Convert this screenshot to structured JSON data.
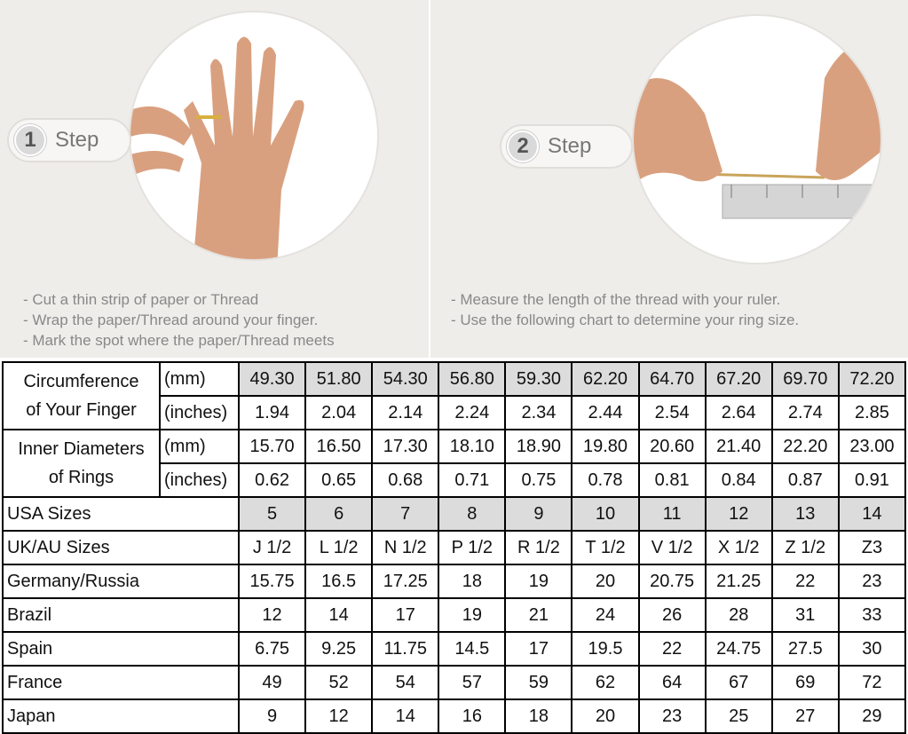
{
  "step1": {
    "number": "1",
    "label": "Step",
    "instructions": [
      "Cut a thin strip of paper or Thread",
      "Wrap the paper/Thread around your finger.",
      "Mark the spot where the paper/Thread meets"
    ]
  },
  "step2": {
    "number": "2",
    "label": "Step",
    "instructions": [
      "Measure the length of the thread with your ruler.",
      "Use the following chart to determine your ring size."
    ]
  },
  "table": {
    "circumference": {
      "label": [
        "Circumference",
        "of Your Finger"
      ],
      "mm_unit": "(mm)",
      "in_unit": "(inches)",
      "mm": [
        "49.30",
        "51.80",
        "54.30",
        "56.80",
        "59.30",
        "62.20",
        "64.70",
        "67.20",
        "69.70",
        "72.20"
      ],
      "inches": [
        "1.94",
        "2.04",
        "2.14",
        "2.24",
        "2.34",
        "2.44",
        "2.54",
        "2.64",
        "2.74",
        "2.85"
      ]
    },
    "diameter": {
      "label": [
        "Inner Diameters",
        "of Rings"
      ],
      "mm_unit": "(mm)",
      "in_unit": "(inches)",
      "mm": [
        "15.70",
        "16.50",
        "17.30",
        "18.10",
        "18.90",
        "19.80",
        "20.60",
        "21.40",
        "22.20",
        "23.00"
      ],
      "inches": [
        "0.62",
        "0.65",
        "0.68",
        "0.71",
        "0.75",
        "0.78",
        "0.81",
        "0.84",
        "0.87",
        "0.91"
      ]
    },
    "rows": [
      {
        "label": "USA Sizes",
        "values": [
          "5",
          "6",
          "7",
          "8",
          "9",
          "10",
          "11",
          "12",
          "13",
          "14"
        ]
      },
      {
        "label": "UK/AU Sizes",
        "values": [
          "J 1/2",
          "L 1/2",
          "N 1/2",
          "P 1/2",
          "R 1/2",
          "T 1/2",
          "V 1/2",
          "X 1/2",
          "Z 1/2",
          "Z3"
        ]
      },
      {
        "label": "Germany/Russia",
        "values": [
          "15.75",
          "16.5",
          "17.25",
          "18",
          "19",
          "20",
          "20.75",
          "21.25",
          "22",
          "23"
        ]
      },
      {
        "label": "Brazil",
        "values": [
          "12",
          "14",
          "17",
          "19",
          "21",
          "24",
          "26",
          "28",
          "31",
          "33"
        ]
      },
      {
        "label": "Spain",
        "values": [
          "6.75",
          "9.25",
          "11.75",
          "14.5",
          "17",
          "19.5",
          "22",
          "24.75",
          "27.5",
          "30"
        ]
      },
      {
        "label": "France",
        "values": [
          "49",
          "52",
          "54",
          "57",
          "59",
          "62",
          "64",
          "67",
          "69",
          "72"
        ]
      },
      {
        "label": "Japan",
        "values": [
          "9",
          "12",
          "14",
          "16",
          "18",
          "20",
          "23",
          "25",
          "27",
          "29"
        ]
      }
    ]
  },
  "colors": {
    "panel_bg": "#efedea",
    "shaded_cell": "#dcdcdc",
    "skin": "#d9a07f"
  }
}
